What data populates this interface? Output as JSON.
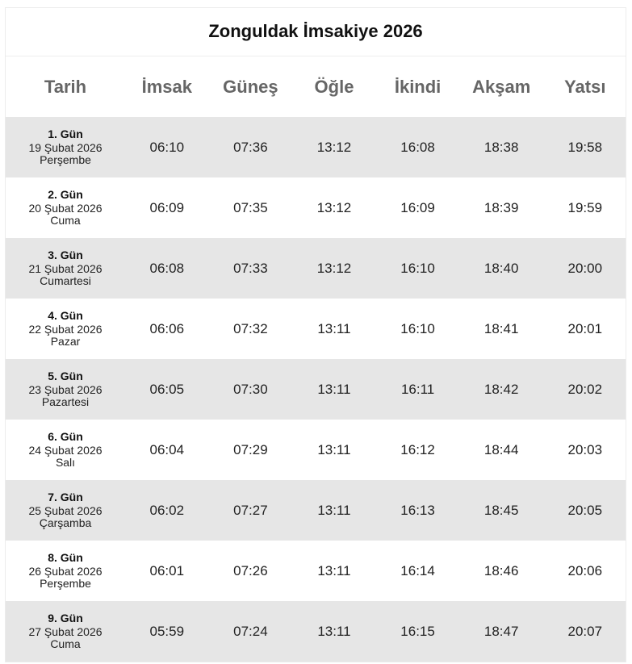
{
  "title": "Zonguldak İmsakiye 2026",
  "headers": [
    "Tarih",
    "İmsak",
    "Güneş",
    "Öğle",
    "İkindi",
    "Akşam",
    "Yatsı"
  ],
  "rows": [
    {
      "day": "1. Gün",
      "date": "19 Şubat 2026",
      "weekday": "Perşembe",
      "imsak": "06:10",
      "gunes": "07:36",
      "ogle": "13:12",
      "ikindi": "16:08",
      "aksam": "18:38",
      "yatsi": "19:58"
    },
    {
      "day": "2. Gün",
      "date": "20 Şubat 2026",
      "weekday": "Cuma",
      "imsak": "06:09",
      "gunes": "07:35",
      "ogle": "13:12",
      "ikindi": "16:09",
      "aksam": "18:39",
      "yatsi": "19:59"
    },
    {
      "day": "3. Gün",
      "date": "21 Şubat 2026",
      "weekday": "Cumartesi",
      "imsak": "06:08",
      "gunes": "07:33",
      "ogle": "13:12",
      "ikindi": "16:10",
      "aksam": "18:40",
      "yatsi": "20:00"
    },
    {
      "day": "4. Gün",
      "date": "22 Şubat 2026",
      "weekday": "Pazar",
      "imsak": "06:06",
      "gunes": "07:32",
      "ogle": "13:11",
      "ikindi": "16:10",
      "aksam": "18:41",
      "yatsi": "20:01"
    },
    {
      "day": "5. Gün",
      "date": "23 Şubat 2026",
      "weekday": "Pazartesi",
      "imsak": "06:05",
      "gunes": "07:30",
      "ogle": "13:11",
      "ikindi": "16:11",
      "aksam": "18:42",
      "yatsi": "20:02"
    },
    {
      "day": "6. Gün",
      "date": "24 Şubat 2026",
      "weekday": "Salı",
      "imsak": "06:04",
      "gunes": "07:29",
      "ogle": "13:11",
      "ikindi": "16:12",
      "aksam": "18:44",
      "yatsi": "20:03"
    },
    {
      "day": "7. Gün",
      "date": "25 Şubat 2026",
      "weekday": "Çarşamba",
      "imsak": "06:02",
      "gunes": "07:27",
      "ogle": "13:11",
      "ikindi": "16:13",
      "aksam": "18:45",
      "yatsi": "20:05"
    },
    {
      "day": "8. Gün",
      "date": "26 Şubat 2026",
      "weekday": "Perşembe",
      "imsak": "06:01",
      "gunes": "07:26",
      "ogle": "13:11",
      "ikindi": "16:14",
      "aksam": "18:46",
      "yatsi": "20:06"
    },
    {
      "day": "9. Gün",
      "date": "27 Şubat 2026",
      "weekday": "Cuma",
      "imsak": "05:59",
      "gunes": "07:24",
      "ogle": "13:11",
      "ikindi": "16:15",
      "aksam": "18:47",
      "yatsi": "20:07"
    }
  ]
}
